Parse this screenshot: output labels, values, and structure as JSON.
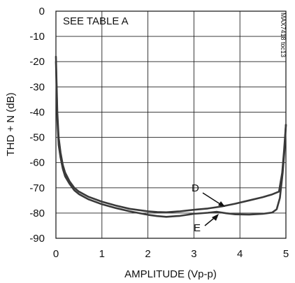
{
  "chart_data": {
    "type": "line",
    "title": "",
    "xlabel": "AMPLITUDE (Vp-p)",
    "ylabel": "THD + N (dB)",
    "xlim": [
      0,
      5
    ],
    "ylim": [
      -90,
      0
    ],
    "xticks": [
      0,
      1,
      2,
      3,
      4,
      5
    ],
    "yticks": [
      0,
      -10,
      -20,
      -30,
      -40,
      -50,
      -60,
      -70,
      -80,
      -90
    ],
    "grid": true,
    "legend": "none",
    "annotations": {
      "table_note": "SEE TABLE A",
      "figure_code": "MAX7418 toc13",
      "label_d": "D",
      "label_e": "E"
    },
    "series": [
      {
        "x": [
          0.0,
          0.03,
          0.06,
          0.1,
          0.15,
          0.2,
          0.3,
          0.4,
          0.5,
          0.7,
          1.0,
          1.3,
          1.6,
          2.0,
          2.2,
          2.4,
          2.7,
          3.0,
          3.3,
          3.6,
          3.9,
          4.2,
          4.5,
          4.7,
          4.85,
          4.92,
          4.96,
          5.0
        ],
        "y": [
          -18,
          -40,
          -50,
          -56,
          -61,
          -64,
          -67.5,
          -70,
          -71.5,
          -73.5,
          -75.5,
          -77,
          -78.3,
          -79.3,
          -79.6,
          -79.7,
          -79.3,
          -78.7,
          -78.2,
          -77.4,
          -76.3,
          -75,
          -73.7,
          -72.6,
          -71.5,
          -64,
          -55,
          -45
        ]
      },
      {
        "x": [
          0.0,
          0.03,
          0.06,
          0.1,
          0.15,
          0.2,
          0.3,
          0.4,
          0.5,
          0.7,
          1.0,
          1.3,
          1.6,
          2.0,
          2.2,
          2.4,
          2.7,
          3.0,
          3.3,
          3.5,
          3.7,
          3.9,
          4.2,
          4.5,
          4.7,
          4.8,
          4.87,
          4.93,
          4.97,
          5.0
        ],
        "y": [
          -20,
          -43,
          -53,
          -58,
          -62.5,
          -65.5,
          -68.5,
          -71,
          -72.5,
          -74.5,
          -76.5,
          -78,
          -79.3,
          -80.7,
          -81.2,
          -81.5,
          -81.1,
          -80.3,
          -79.9,
          -79.5,
          -80.1,
          -80.5,
          -80.6,
          -80.3,
          -79.8,
          -78.5,
          -74,
          -64,
          -55,
          -45
        ]
      }
    ]
  }
}
